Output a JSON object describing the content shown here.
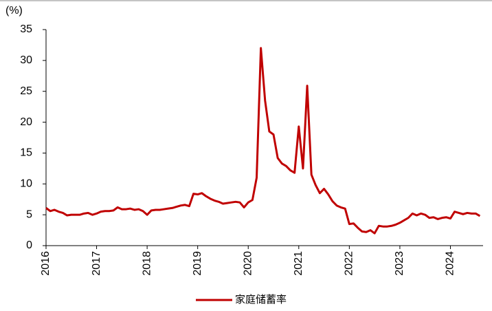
{
  "chart_data": {
    "type": "line",
    "y_unit": "(%)",
    "categories": [
      "2016",
      null,
      null,
      null,
      null,
      null,
      null,
      null,
      null,
      null,
      null,
      null,
      "2017",
      null,
      null,
      null,
      null,
      null,
      null,
      null,
      null,
      null,
      null,
      null,
      "2018",
      null,
      null,
      null,
      null,
      null,
      null,
      null,
      null,
      null,
      null,
      null,
      "2019",
      null,
      null,
      null,
      null,
      null,
      null,
      null,
      null,
      null,
      null,
      null,
      "2020",
      null,
      null,
      null,
      null,
      null,
      null,
      null,
      null,
      null,
      null,
      null,
      "2021",
      null,
      null,
      null,
      null,
      null,
      null,
      null,
      null,
      null,
      null,
      null,
      "2022",
      null,
      null,
      null,
      null,
      null,
      null,
      null,
      null,
      null,
      null,
      null,
      "2023",
      null,
      null,
      null,
      null,
      null,
      null,
      null,
      null,
      null,
      null,
      null,
      "2024",
      null,
      null,
      null,
      null,
      null,
      null,
      null
    ],
    "series": [
      {
        "name": "家庭储蓄率",
        "color": "#C00000",
        "values": [
          6.1,
          5.6,
          5.8,
          5.5,
          5.3,
          4.9,
          5.0,
          5.0,
          5.0,
          5.2,
          5.3,
          5.0,
          5.2,
          5.5,
          5.6,
          5.6,
          5.7,
          6.2,
          5.9,
          5.9,
          6.0,
          5.8,
          5.9,
          5.6,
          5.0,
          5.7,
          5.8,
          5.8,
          5.9,
          6.0,
          6.1,
          6.3,
          6.5,
          6.6,
          6.4,
          8.4,
          8.3,
          8.5,
          8.0,
          7.6,
          7.3,
          7.1,
          6.8,
          6.9,
          7.0,
          7.1,
          7.0,
          6.2,
          7.0,
          7.4,
          11.0,
          32.0,
          23.5,
          18.5,
          18.0,
          14.2,
          13.3,
          12.9,
          12.2,
          11.8,
          19.3,
          12.5,
          25.9,
          11.5,
          9.8,
          8.5,
          9.2,
          8.3,
          7.2,
          6.5,
          6.2,
          6.0,
          3.5,
          3.6,
          2.9,
          2.3,
          2.2,
          2.5,
          2.0,
          3.2,
          3.1,
          3.1,
          3.2,
          3.4,
          3.7,
          4.1,
          4.5,
          5.2,
          4.9,
          5.2,
          5.0,
          4.5,
          4.6,
          4.3,
          4.5,
          4.6,
          4.4,
          5.5,
          5.3,
          5.1,
          5.3,
          5.2,
          5.2,
          4.8
        ]
      }
    ],
    "ylim": [
      0,
      35
    ],
    "yticks": [
      0,
      5,
      10,
      15,
      20,
      25,
      30,
      35
    ],
    "legend": "bottom"
  }
}
